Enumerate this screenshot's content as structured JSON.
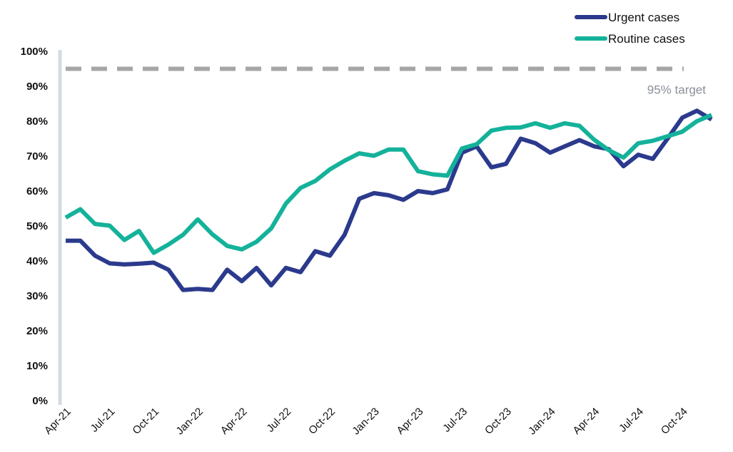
{
  "chart_data": {
    "type": "line",
    "title": "",
    "xlabel": "",
    "ylabel": "",
    "ylim": [
      0,
      100
    ],
    "y_ticks": [
      "0%",
      "10%",
      "20%",
      "30%",
      "40%",
      "50%",
      "60%",
      "70%",
      "80%",
      "90%",
      "100%"
    ],
    "x_tick_labels": [
      "Apr-21",
      "Jul-21",
      "Oct-21",
      "Jan-22",
      "Apr-22",
      "Jul-22",
      "Oct-22",
      "Jan-23",
      "Apr-23",
      "Jul-23",
      "Oct-23",
      "Jan-24",
      "Apr-24",
      "Jul-24",
      "Oct-24"
    ],
    "months": [
      "Apr-21",
      "May-21",
      "Jun-21",
      "Jul-21",
      "Aug-21",
      "Sep-21",
      "Oct-21",
      "Nov-21",
      "Dec-21",
      "Jan-22",
      "Feb-22",
      "Mar-22",
      "Apr-22",
      "May-22",
      "Jun-22",
      "Jul-22",
      "Aug-22",
      "Sep-22",
      "Oct-22",
      "Nov-22",
      "Dec-22",
      "Jan-23",
      "Feb-23",
      "Mar-23",
      "Apr-23",
      "May-23",
      "Jun-23",
      "Jul-23",
      "Aug-23",
      "Sep-23",
      "Oct-23",
      "Nov-23",
      "Dec-23",
      "Jan-24",
      "Feb-24",
      "Mar-24",
      "Apr-24",
      "May-24",
      "Jun-24",
      "Jul-24",
      "Aug-24",
      "Sep-24",
      "Oct-24",
      "Nov-24",
      "Dec-24"
    ],
    "series": [
      {
        "name": "Urgent cases",
        "color": "#2b3a8c",
        "values": [
          45.8,
          45.8,
          41.5,
          39.3,
          39.0,
          39.2,
          39.5,
          37.5,
          31.7,
          32.0,
          31.7,
          37.5,
          34.2,
          38.0,
          33.0,
          38.0,
          36.8,
          42.8,
          41.5,
          47.5,
          57.8,
          59.4,
          58.8,
          57.5,
          60.0,
          59.4,
          60.5,
          71.0,
          72.8,
          66.8,
          67.8,
          75.0,
          73.7,
          71.0,
          72.8,
          74.6,
          72.8,
          72.0,
          67.1,
          70.4,
          69.2,
          75.0,
          81.0,
          83.0,
          80.5
        ]
      },
      {
        "name": "Routine cases",
        "color": "#14b29a",
        "values": [
          52.4,
          54.8,
          50.6,
          50.1,
          46.0,
          48.6,
          42.3,
          44.7,
          47.5,
          51.9,
          47.6,
          44.3,
          43.3,
          45.5,
          49.3,
          56.4,
          60.9,
          62.9,
          66.2,
          68.7,
          70.8,
          70.1,
          71.9,
          71.9,
          65.7,
          64.8,
          64.4,
          72.2,
          73.4,
          77.3,
          78.1,
          78.2,
          79.4,
          78.1,
          79.4,
          78.7,
          74.7,
          71.7,
          69.6,
          73.7,
          74.4,
          75.7,
          77.0,
          80.0,
          81.8
        ]
      }
    ],
    "target": {
      "value": 95,
      "label": "95% target",
      "color": "#a6a6a6"
    },
    "grid": false,
    "legend": {
      "position": "top-right"
    }
  }
}
